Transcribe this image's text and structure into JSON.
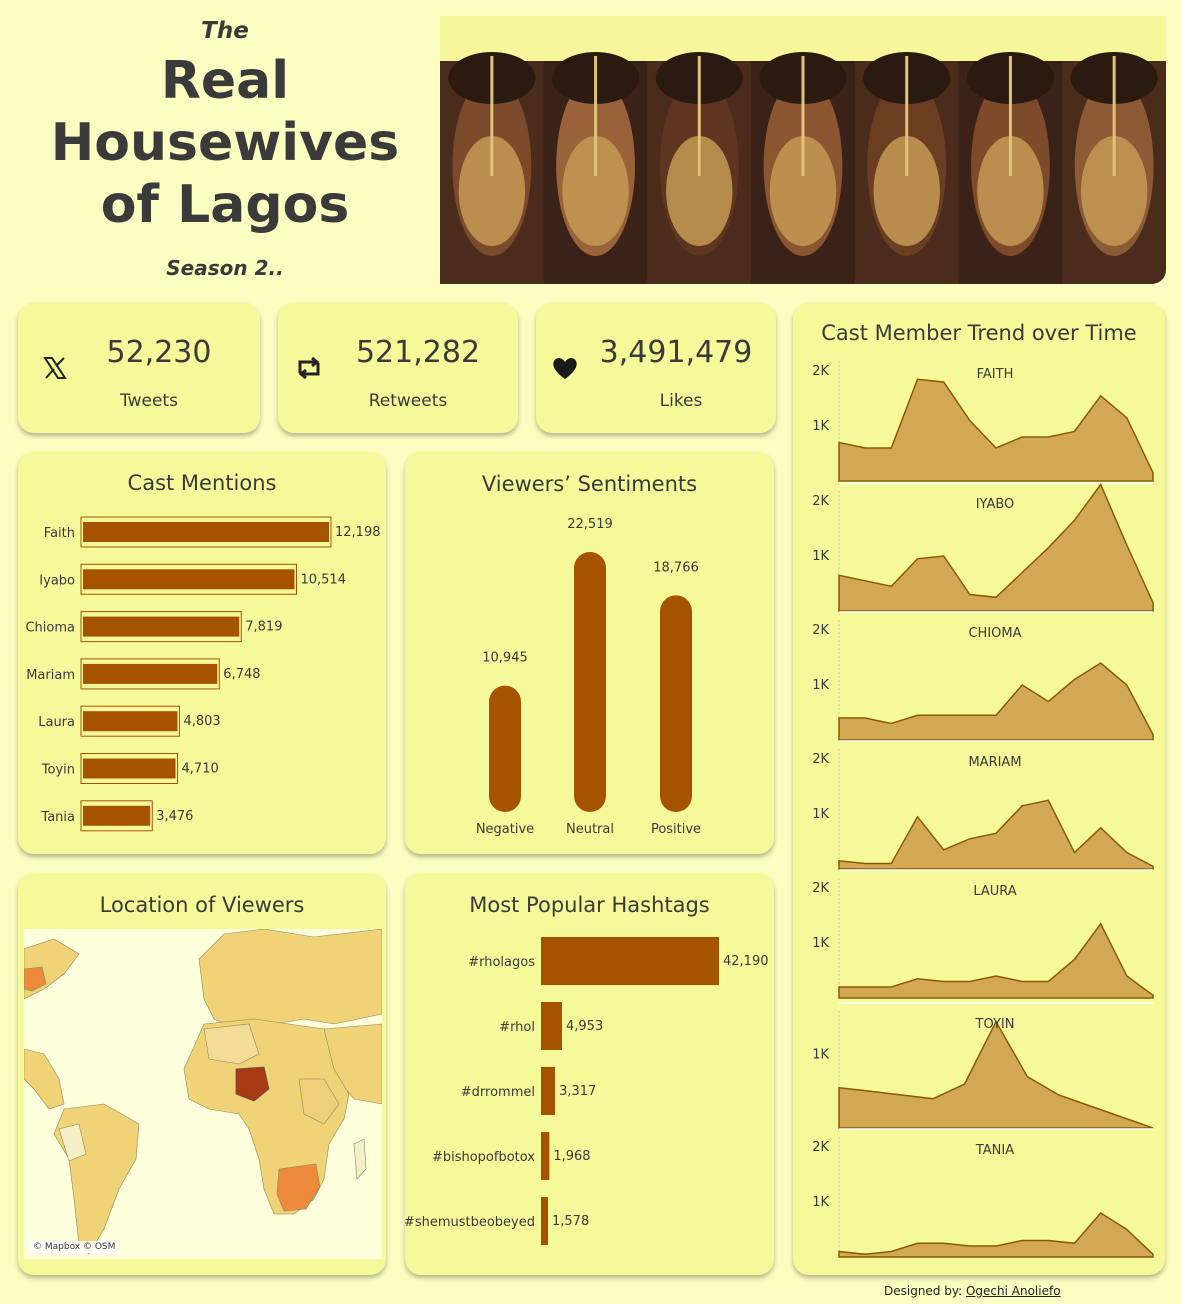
{
  "header": {
    "the": "The",
    "title_lines": [
      "Real",
      "Housewives",
      "of Lagos"
    ],
    "season": "Season 2.."
  },
  "kpis": [
    {
      "value": "52,230",
      "label": "Tweets",
      "icon": "x-logo-icon"
    },
    {
      "value": "521,282",
      "label": "Retweets",
      "icon": "retweet-icon"
    },
    {
      "value": "3,491,479",
      "label": "Likes",
      "icon": "heart-icon"
    }
  ],
  "colors": {
    "background": "#fcfdc0",
    "card": "#f6f99a",
    "bar": "#a65300",
    "area_fill": "#d3a855",
    "area_line": "#8a5a00",
    "map_land": "#f0d277",
    "map_high": "#a83a14",
    "map_mid": "#ee8a3c"
  },
  "cast_mentions": {
    "title": "Cast Mentions"
  },
  "sentiments": {
    "title": "Viewers’ Sentiments"
  },
  "hashtags": {
    "title": "Most Popular Hashtags"
  },
  "map": {
    "title": "Location of Viewers",
    "credit": "© Mapbox © OSM"
  },
  "trend": {
    "title": "Cast Member Trend over Time"
  },
  "footer": {
    "label": "Designed by:",
    "name": "Ogechi Anoliefo"
  },
  "chart_data": [
    {
      "type": "bar",
      "orientation": "horizontal",
      "title": "Cast Mentions",
      "categories": [
        "Faith",
        "Iyabo",
        "Chioma",
        "Mariam",
        "Laura",
        "Toyin",
        "Tania"
      ],
      "values": [
        12198,
        10514,
        7819,
        6748,
        4803,
        4710,
        3476
      ],
      "labels": [
        "12,198",
        "10,514",
        "7,819",
        "6,748",
        "4,803",
        "4,710",
        "3,476"
      ]
    },
    {
      "type": "bar",
      "orientation": "vertical",
      "title": "Viewers’ Sentiments",
      "categories": [
        "Negative",
        "Neutral",
        "Positive"
      ],
      "values": [
        10945,
        22519,
        18766
      ],
      "labels": [
        "10,945",
        "22,519",
        "18,766"
      ]
    },
    {
      "type": "bar",
      "orientation": "horizontal",
      "title": "Most Popular Hashtags",
      "categories": [
        "#rholagos",
        "#rhol",
        "#drrommel",
        "#bishopofbotox",
        "#shemustbeobeyed"
      ],
      "values": [
        42190,
        4953,
        3317,
        1968,
        1578
      ],
      "labels": [
        "42,190",
        "4,953",
        "3,317",
        "1,968",
        "1,578"
      ]
    },
    {
      "type": "area",
      "title": "Cast Member Trend over Time",
      "ylim": [
        0,
        2000
      ],
      "grid": true,
      "series": [
        {
          "name": "FAITH",
          "ticks": [
            "2K",
            "1K"
          ],
          "values": [
            700,
            600,
            600,
            1850,
            1800,
            1100,
            600,
            800,
            800,
            900,
            1550,
            1150,
            150
          ]
        },
        {
          "name": "IYABO",
          "ticks": [
            "2K",
            "1K"
          ],
          "values": [
            650,
            550,
            450,
            950,
            1000,
            300,
            250,
            700,
            1150,
            1650,
            2300,
            1200,
            150
          ]
        },
        {
          "name": "CHIOMA",
          "ticks": [
            "2K",
            "1K"
          ],
          "values": [
            400,
            400,
            300,
            450,
            450,
            450,
            450,
            1000,
            700,
            1100,
            1400,
            1000,
            100
          ]
        },
        {
          "name": "MARIAM",
          "ticks": [
            "2K",
            "1K"
          ],
          "values": [
            150,
            100,
            100,
            950,
            350,
            550,
            650,
            1150,
            1250,
            300,
            750,
            300,
            50
          ]
        },
        {
          "name": "LAURA",
          "ticks": [
            "2K",
            "1K"
          ],
          "values": [
            200,
            200,
            200,
            350,
            300,
            300,
            400,
            300,
            300,
            700,
            1350,
            400,
            50
          ]
        },
        {
          "name": "TOYIN",
          "ticks": [
            "1K"
          ],
          "values": [
            550,
            500,
            450,
            400,
            600,
            1450,
            700,
            450,
            300,
            150,
            0
          ]
        },
        {
          "name": "TANIA",
          "ticks": [
            "2K",
            "1K"
          ],
          "values": [
            100,
            50,
            100,
            250,
            250,
            200,
            200,
            300,
            300,
            250,
            800,
            500,
            50
          ]
        }
      ]
    }
  ]
}
